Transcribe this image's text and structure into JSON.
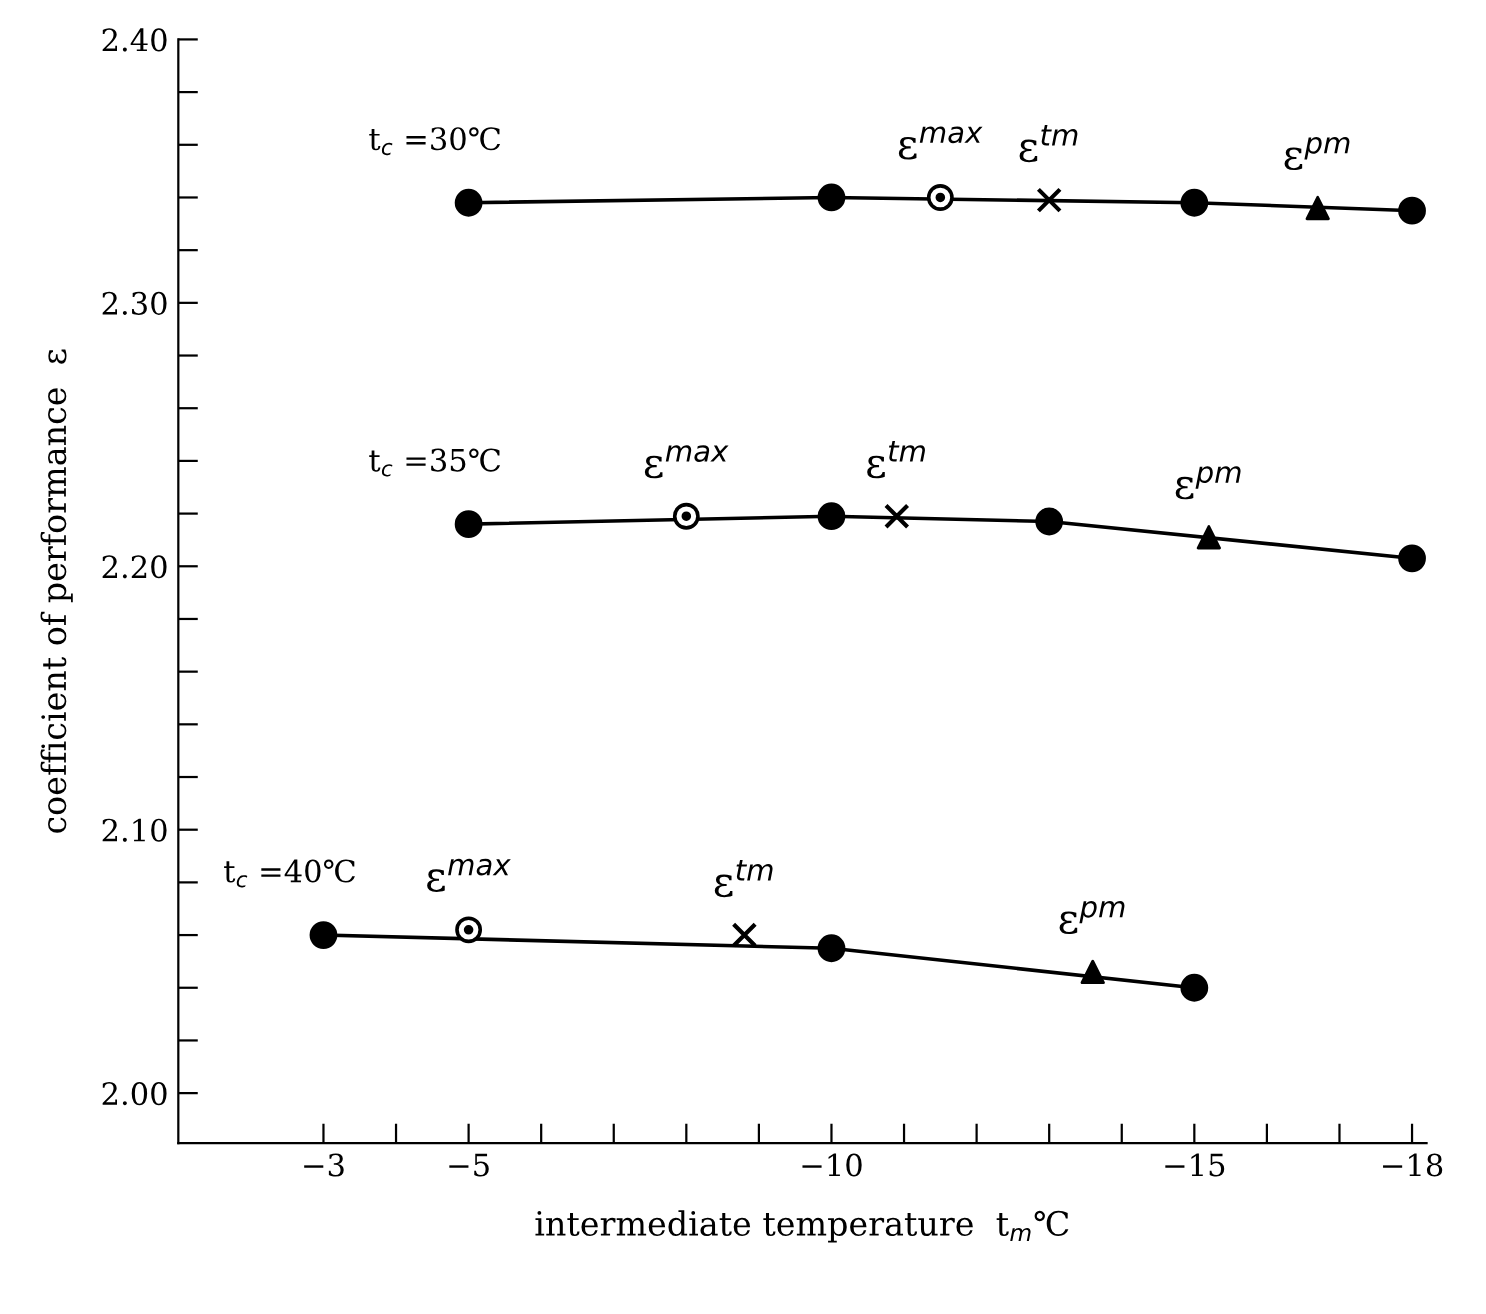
{
  "chart_data": {
    "type": "line",
    "xlabel": "intermediate temperature  t$_{m}$℃",
    "ylabel": "coefficient of performance  ε",
    "xlim": [
      -1.0,
      -18.2
    ],
    "xticks": [
      {
        "value": -3,
        "label": "−3"
      },
      {
        "value": -4,
        "label": null
      },
      {
        "value": -5,
        "label": "−5"
      },
      {
        "value": -6,
        "label": null
      },
      {
        "value": -7,
        "label": null
      },
      {
        "value": -8,
        "label": null
      },
      {
        "value": -9,
        "label": null
      },
      {
        "value": -10,
        "label": "−10"
      },
      {
        "value": -11,
        "label": null
      },
      {
        "value": -12,
        "label": null
      },
      {
        "value": -13,
        "label": null
      },
      {
        "value": -14,
        "label": null
      },
      {
        "value": -15,
        "label": "−15"
      },
      {
        "value": -16,
        "label": null
      },
      {
        "value": -17,
        "label": null
      },
      {
        "value": -18,
        "label": "−18"
      }
    ],
    "ylim": [
      1.981,
      2.4
    ],
    "yticks": [
      {
        "value": 2.4,
        "label": "2.40"
      },
      {
        "value": 2.38,
        "label": null
      },
      {
        "value": 2.36,
        "label": null
      },
      {
        "value": 2.34,
        "label": null
      },
      {
        "value": 2.32,
        "label": null
      },
      {
        "value": 2.3,
        "label": "2.30"
      },
      {
        "value": 2.28,
        "label": null
      },
      {
        "value": 2.26,
        "label": null
      },
      {
        "value": 2.24,
        "label": null
      },
      {
        "value": 2.22,
        "label": null
      },
      {
        "value": 2.2,
        "label": "2.20"
      },
      {
        "value": 2.18,
        "label": null
      },
      {
        "value": 2.16,
        "label": null
      },
      {
        "value": 2.14,
        "label": null
      },
      {
        "value": 2.12,
        "label": null
      },
      {
        "value": 2.1,
        "label": "2.10"
      },
      {
        "value": 2.08,
        "label": null
      },
      {
        "value": 2.06,
        "label": null
      },
      {
        "value": 2.04,
        "label": null
      },
      {
        "value": 2.02,
        "label": null
      },
      {
        "value": 2.0,
        "label": "2.00"
      }
    ],
    "grid": false,
    "legend": false,
    "series": [
      {
        "name": "t$_{c}$ =30℃",
        "marker": "circle",
        "color": "#000000",
        "x": [
          -5,
          -10,
          -15,
          -18
        ],
        "values": [
          2.338,
          2.34,
          2.338,
          2.335
        ]
      },
      {
        "name": "t$_{c}$ =35℃",
        "marker": "circle",
        "color": "#000000",
        "x": [
          -5,
          -10,
          -13,
          -18
        ],
        "values": [
          2.216,
          2.219,
          2.217,
          2.203
        ]
      },
      {
        "name": "t$_{c}$ =40℃",
        "marker": "circle",
        "color": "#000000",
        "x": [
          -3,
          -10,
          -15
        ],
        "values": [
          2.06,
          2.055,
          2.04
        ]
      },
      {
        "type": "scatter",
        "marker": "circle",
        "color": "#000000",
        "x": [
          -11.5,
          -8.0,
          -5.0
        ],
        "values": [
          2.34,
          2.219,
          2.062
        ]
      },
      {
        "type": "scatter",
        "marker": "cross",
        "color": "#000000",
        "x": [
          -13.0,
          -10.9,
          -8.8
        ],
        "values": [
          2.339,
          2.219,
          2.06
        ]
      },
      {
        "type": "scatter",
        "marker": "triangle",
        "color": "#000000",
        "x": [
          -16.7,
          -15.2,
          -13.6
        ],
        "values": [
          2.336,
          2.211,
          2.046
        ]
      }
    ],
    "annotations": [
      {
        "text": "ε$^{max}$",
        "x": -11.5,
        "y": 2.34
      },
      {
        "text": "ε$^{tm}$",
        "x": -13.0,
        "y": 2.339
      },
      {
        "text": "ε$^{pm}$",
        "x": -16.7,
        "y": 2.336
      },
      {
        "text": "ε$^{max}$",
        "x": -8.0,
        "y": 2.219
      },
      {
        "text": "ε$^{tm}$",
        "x": -10.9,
        "y": 2.219
      },
      {
        "text": "ε$^{pm}$",
        "x": -15.2,
        "y": 2.211
      },
      {
        "text": "ε$^{max}$",
        "x": -5.0,
        "y": 2.062
      },
      {
        "text": "ε$^{tm}$",
        "x": -8.8,
        "y": 2.06
      },
      {
        "text": "ε$^{pm}$",
        "x": -13.6,
        "y": 2.046
      }
    ]
  }
}
